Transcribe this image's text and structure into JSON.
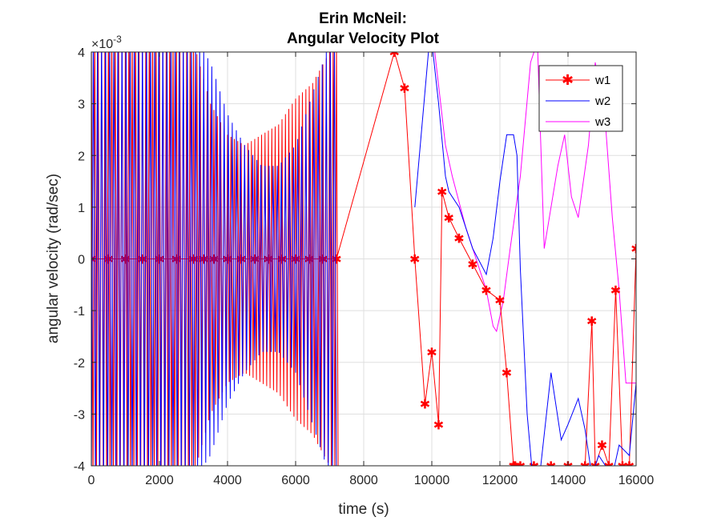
{
  "chart_data": {
    "type": "line",
    "title": [
      "Erin McNeil:",
      "Angular Velocity Plot"
    ],
    "xlabel": "time (s)",
    "ylabel": "angular velocity (rad/sec)",
    "xlim": [
      0,
      16000
    ],
    "ylim": [
      -0.004,
      0.004
    ],
    "xticks": [
      0,
      2000,
      4000,
      6000,
      8000,
      10000,
      12000,
      14000,
      16000
    ],
    "xtick_labels": [
      "0",
      "2000",
      "4000",
      "6000",
      "8000",
      "10000",
      "12000",
      "14000",
      "16000"
    ],
    "yticks": [
      -4,
      -3,
      -2,
      -1,
      0,
      1,
      2,
      3,
      4
    ],
    "ytick_labels": [
      "-4",
      "-3",
      "-2",
      "-1",
      "0",
      "1",
      "2",
      "3",
      "4"
    ],
    "y_exponent_label": "×10",
    "y_exponent_power": "-3",
    "grid": true,
    "legend_position": "top-right",
    "series": [
      {
        "name": "w1",
        "color": "#ff0000",
        "marker": "*",
        "x": [
          0,
          500,
          1000,
          1500,
          2000,
          2500,
          3000,
          3300,
          3600,
          4000,
          4400,
          4800,
          5200,
          5600,
          6000,
          6400,
          6800,
          7200,
          8900,
          9200,
          9500,
          9800,
          10000,
          10200,
          10300,
          10500,
          10800,
          11200,
          11600,
          12000,
          12200,
          12400,
          12450,
          12600,
          13000,
          13500,
          14000,
          14500,
          14700,
          14800,
          15000,
          15200,
          15400,
          15600,
          15800,
          16000
        ],
        "y": [
          0.0,
          0.0,
          0.0,
          0.0,
          0.0,
          0.0,
          0.0,
          0.0,
          0.0,
          0.0,
          0.0,
          0.0,
          0.0,
          0.0,
          0.0,
          0.0,
          0.0,
          0.0,
          0.004,
          0.0033,
          0.0,
          -0.0028,
          -0.0018,
          -0.0032,
          0.0013,
          0.0008,
          0.0004,
          -0.0001,
          -0.0006,
          -0.0008,
          -0.0022,
          -0.004,
          -0.004,
          -0.004,
          -0.004,
          -0.004,
          -0.004,
          -0.004,
          -0.0012,
          -0.004,
          -0.0036,
          -0.004,
          -0.0006,
          -0.004,
          -0.004,
          0.0002
        ],
        "envelope": {
          "x": [
            0,
            2000,
            3000,
            3500,
            4000,
            4500,
            5000,
            5500,
            6000,
            6500,
            7000,
            7250
          ],
          "amp": [
            0.0045,
            0.0045,
            0.0042,
            0.003,
            0.0024,
            0.0022,
            0.0024,
            0.0026,
            0.0031,
            0.0034,
            0.004,
            0.0042
          ]
        }
      },
      {
        "name": "w2",
        "color": "#0000ff",
        "marker": "none",
        "x": [
          9500,
          9700,
          9900,
          10000,
          10200,
          10400,
          10500,
          10800,
          11200,
          11600,
          11800,
          12000,
          12200,
          12400,
          12500,
          12600,
          12800,
          13000,
          13200,
          13500,
          13800,
          14000,
          14300,
          14500,
          14700,
          14900,
          15100,
          15300,
          15500,
          15800,
          16000
        ],
        "y": [
          0.001,
          0.0025,
          0.004,
          0.0042,
          0.003,
          0.0016,
          0.0013,
          0.001,
          0.0002,
          -0.0003,
          0.0004,
          0.0015,
          0.0024,
          0.0024,
          0.002,
          -0.0002,
          -0.003,
          -0.0045,
          -0.004,
          -0.0022,
          -0.0035,
          -0.0032,
          -0.0027,
          -0.0033,
          -0.0042,
          -0.0038,
          -0.004,
          -0.0042,
          -0.0036,
          -0.0038,
          -0.0024
        ],
        "envelope": {
          "x": [
            0,
            2000,
            3000,
            3500,
            4000,
            4500,
            5000,
            5500,
            6000,
            6500,
            7000,
            7250
          ],
          "amp": [
            0.0045,
            0.0045,
            0.0043,
            0.0038,
            0.0028,
            0.0022,
            0.0018,
            0.0018,
            0.0022,
            0.0032,
            0.0042,
            0.0045
          ]
        }
      },
      {
        "name": "w3",
        "color": "#ff00ff",
        "marker": "none",
        "x": [
          10000,
          10400,
          10600,
          10800,
          11000,
          11300,
          11600,
          11800,
          11900,
          12100,
          12300,
          12600,
          12900,
          13100,
          13300,
          13500,
          13700,
          13900,
          14100,
          14300,
          14600,
          14800,
          15100,
          15300,
          15500,
          15700,
          16000
        ],
        "y": [
          0.0045,
          0.0022,
          0.0016,
          0.0011,
          0.0006,
          0.0,
          -0.0006,
          -0.0013,
          -0.0014,
          -0.0008,
          0.0002,
          0.0016,
          0.0038,
          0.0042,
          0.0002,
          0.001,
          0.0018,
          0.0024,
          0.0012,
          0.0008,
          0.0022,
          0.0038,
          0.0026,
          0.0008,
          -0.0006,
          -0.0024,
          -0.0024
        ]
      }
    ]
  }
}
